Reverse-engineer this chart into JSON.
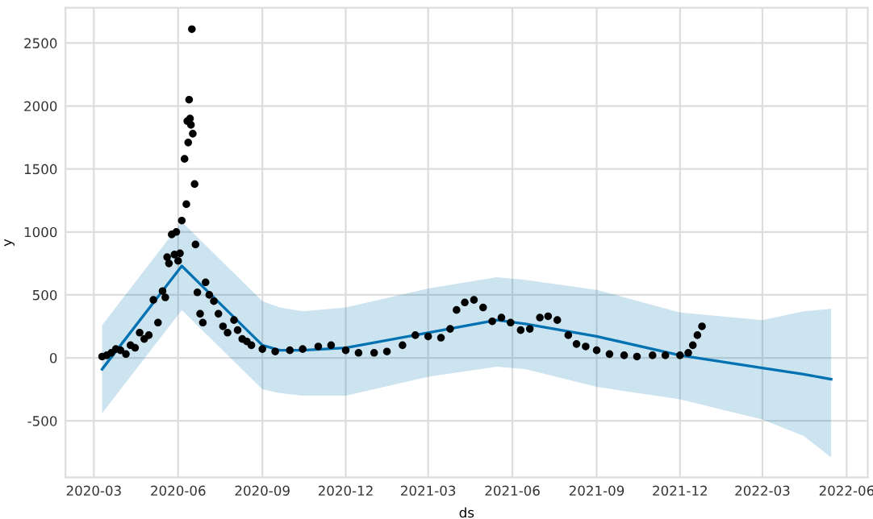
{
  "chart_data": {
    "type": "scatter",
    "xlabel": "ds",
    "ylabel": "y",
    "xlim": [
      "2020-01-30",
      "2022-06-24"
    ],
    "xticks": [
      "2020-03",
      "2020-06",
      "2020-09",
      "2020-12",
      "2021-03",
      "2021-06",
      "2021-09",
      "2021-12",
      "2022-03",
      "2022-06"
    ],
    "ylim": [
      -950,
      2780
    ],
    "yticks": [
      -500,
      0,
      500,
      1000,
      1500,
      2000,
      2500
    ],
    "grid": true,
    "series": [
      {
        "type": "line",
        "marker": "none",
        "color": "#0072b2",
        "line_style": "solid",
        "x": [
          "2020-03-10",
          "2020-06-05",
          "2020-09-01",
          "2020-09-20",
          "2020-10-15",
          "2020-12-01",
          "2021-03-01",
          "2021-05-15",
          "2021-06-15",
          "2021-09-01",
          "2021-12-01",
          "2022-03-01",
          "2022-04-15",
          "2022-05-15"
        ],
        "values": [
          -90,
          730,
          100,
          60,
          60,
          80,
          200,
          300,
          270,
          170,
          20,
          -80,
          -130,
          -170
        ],
        "lower": [
          -440,
          380,
          -250,
          -280,
          -300,
          -300,
          -150,
          -70,
          -90,
          -230,
          -330,
          -490,
          -620,
          -790
        ],
        "upper": [
          260,
          1080,
          450,
          400,
          370,
          400,
          550,
          640,
          620,
          540,
          360,
          300,
          370,
          390
        ]
      },
      {
        "marker": "circle",
        "color": "#000000",
        "x": [
          "2020-03-10",
          "2020-03-15",
          "2020-03-20",
          "2020-03-25",
          "2020-03-30",
          "2020-04-05",
          "2020-04-10",
          "2020-04-15",
          "2020-04-20",
          "2020-04-25",
          "2020-04-30",
          "2020-05-05",
          "2020-05-10",
          "2020-05-15",
          "2020-05-18",
          "2020-05-20",
          "2020-05-22",
          "2020-05-25",
          "2020-05-28",
          "2020-05-30",
          "2020-06-01",
          "2020-06-03",
          "2020-06-05",
          "2020-06-08",
          "2020-06-10",
          "2020-06-11",
          "2020-06-12",
          "2020-06-13",
          "2020-06-14",
          "2020-06-15",
          "2020-06-16",
          "2020-06-17",
          "2020-06-19",
          "2020-06-20",
          "2020-06-22",
          "2020-06-25",
          "2020-06-28",
          "2020-07-01",
          "2020-07-05",
          "2020-07-10",
          "2020-07-15",
          "2020-07-20",
          "2020-07-25",
          "2020-08-01",
          "2020-08-05",
          "2020-08-10",
          "2020-08-15",
          "2020-08-20",
          "2020-09-01",
          "2020-09-15",
          "2020-10-01",
          "2020-10-15",
          "2020-11-01",
          "2020-11-15",
          "2020-12-01",
          "2020-12-15",
          "2021-01-01",
          "2021-01-15",
          "2021-02-01",
          "2021-02-15",
          "2021-03-01",
          "2021-03-15",
          "2021-03-25",
          "2021-04-01",
          "2021-04-10",
          "2021-04-20",
          "2021-04-30",
          "2021-05-10",
          "2021-05-20",
          "2021-05-30",
          "2021-06-10",
          "2021-06-20",
          "2021-07-01",
          "2021-07-10",
          "2021-07-20",
          "2021-08-01",
          "2021-08-10",
          "2021-08-20",
          "2021-09-01",
          "2021-09-15",
          "2021-10-01",
          "2021-10-15",
          "2021-11-01",
          "2021-11-15",
          "2021-12-01",
          "2021-12-10",
          "2021-12-15",
          "2021-12-20",
          "2021-12-25"
        ],
        "values": [
          10,
          20,
          40,
          70,
          60,
          30,
          100,
          80,
          200,
          150,
          180,
          460,
          280,
          530,
          480,
          800,
          750,
          980,
          820,
          1000,
          770,
          830,
          1090,
          1580,
          1220,
          1880,
          1710,
          2050,
          1900,
          1850,
          2610,
          1780,
          1380,
          900,
          520,
          350,
          280,
          600,
          500,
          450,
          350,
          250,
          200,
          300,
          220,
          150,
          130,
          100,
          70,
          50,
          60,
          70,
          90,
          100,
          60,
          40,
          40,
          50,
          100,
          180,
          170,
          160,
          230,
          380,
          440,
          460,
          400,
          290,
          320,
          280,
          220,
          230,
          320,
          330,
          300,
          180,
          110,
          90,
          60,
          30,
          20,
          10,
          20,
          20,
          20,
          40,
          100,
          180,
          250
        ]
      }
    ]
  }
}
